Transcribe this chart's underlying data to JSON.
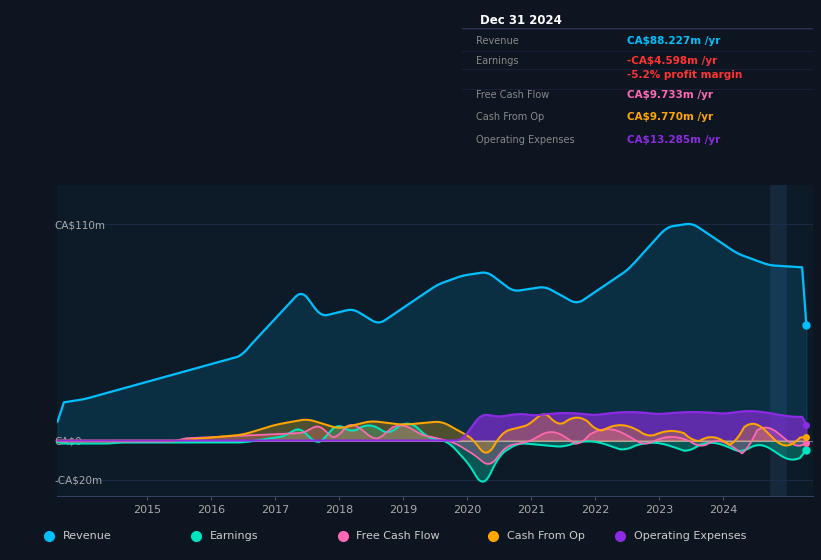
{
  "bg_color": "#0d1520",
  "panel_bg": "#0d1a27",
  "colors": {
    "revenue": "#00bfff",
    "earnings": "#00e5c0",
    "free_cash_flow": "#ff69b4",
    "cash_from_op": "#ffa500",
    "operating_expenses": "#8b2be2"
  },
  "info_box": {
    "title": "Dec 31 2024",
    "rows": [
      {
        "label": "Revenue",
        "value": "CA$88.227m /yr",
        "value_color": "#00bfff",
        "label_color": "#888888"
      },
      {
        "label": "Earnings",
        "value": "-CA$4.598m /yr",
        "value_color": "#ff3333",
        "label_color": "#888888"
      },
      {
        "label": "",
        "value": "-5.2% profit margin",
        "value_color": "#ff3333",
        "label_color": "#888888"
      },
      {
        "label": "Free Cash Flow",
        "value": "CA$9.733m /yr",
        "value_color": "#ff69b4",
        "label_color": "#888888"
      },
      {
        "label": "Cash From Op",
        "value": "CA$9.770m /yr",
        "value_color": "#ffa500",
        "label_color": "#888888"
      },
      {
        "label": "Operating Expenses",
        "value": "CA$13.285m /yr",
        "value_color": "#8b2be2",
        "label_color": "#888888"
      }
    ]
  },
  "legend": [
    {
      "label": "Revenue",
      "color": "#00bfff"
    },
    {
      "label": "Earnings",
      "color": "#00e5c0"
    },
    {
      "label": "Free Cash Flow",
      "color": "#ff69b4"
    },
    {
      "label": "Cash From Op",
      "color": "#ffa500"
    },
    {
      "label": "Operating Expenses",
      "color": "#8b2be2"
    }
  ],
  "ytick_labels": [
    "CA$110m",
    "CA$0",
    "-CA$20m"
  ],
  "ytick_vals": [
    110,
    0,
    -20
  ],
  "xlim": [
    2013.6,
    2025.4
  ],
  "ylim": [
    -28,
    130
  ],
  "year_ticks": [
    2015,
    2016,
    2017,
    2018,
    2019,
    2020,
    2021,
    2022,
    2023,
    2024
  ]
}
